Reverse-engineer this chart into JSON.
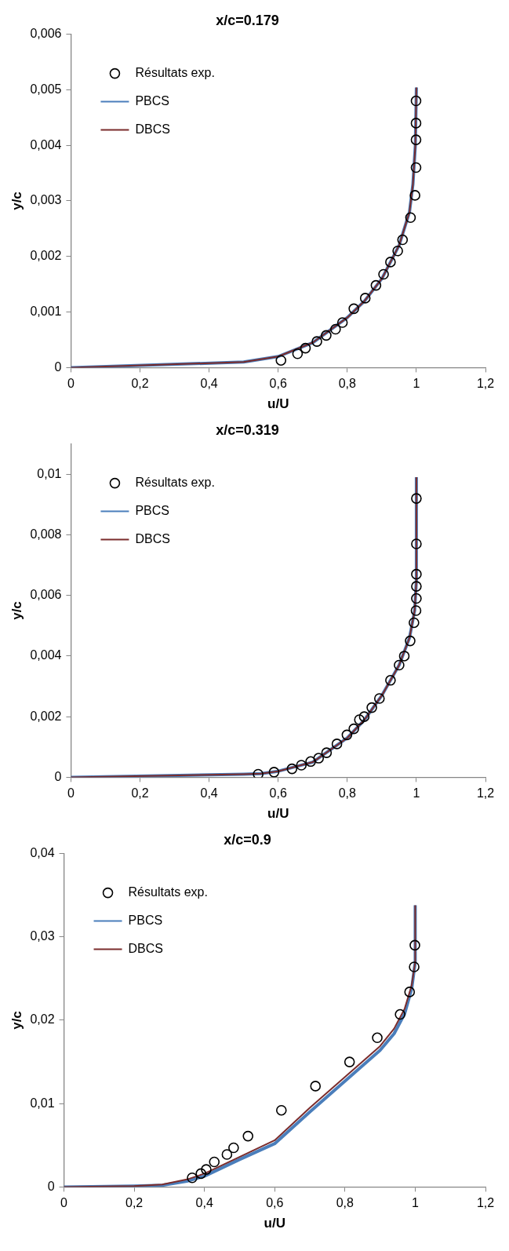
{
  "chart_data": [
    {
      "type": "line",
      "title": "x/c=0.179",
      "xlabel": "u/U",
      "ylabel": "y/c",
      "legend": "top left",
      "grid": false,
      "xlim": [
        0,
        1.2
      ],
      "ylim": [
        0,
        0.006
      ],
      "xticks": [
        {
          "value": 0,
          "label": "0"
        },
        {
          "value": 0.2,
          "label": "0,2"
        },
        {
          "value": 0.4,
          "label": "0,4"
        },
        {
          "value": 0.6,
          "label": "0,6"
        },
        {
          "value": 0.8,
          "label": "0,8"
        },
        {
          "value": 1,
          "label": "1"
        },
        {
          "value": 1.2,
          "label": "1,2"
        }
      ],
      "yticks": [
        {
          "value": 0,
          "label": "0"
        },
        {
          "value": 0.001,
          "label": "0,001"
        },
        {
          "value": 0.002,
          "label": "0,002"
        },
        {
          "value": 0.003,
          "label": "0,003"
        },
        {
          "value": 0.004,
          "label": "0,004"
        },
        {
          "value": 0.005,
          "label": "0,005"
        },
        {
          "value": 0.006,
          "label": "0,006"
        }
      ],
      "series": [
        {
          "name": "Résultats exp.",
          "type": "scatter",
          "marker": "circle",
          "color": "#000000",
          "x": [
            0.608,
            0.656,
            0.679,
            0.712,
            0.739,
            0.766,
            0.786,
            0.819,
            0.852,
            0.883,
            0.905,
            0.925,
            0.946,
            0.96,
            0.983,
            0.996,
            0.999,
            0.999,
            0.999,
            0.999
          ],
          "values": [
            0.00013,
            0.00025,
            0.00035,
            0.00047,
            0.00058,
            0.00069,
            0.00081,
            0.00106,
            0.00125,
            0.00148,
            0.00168,
            0.0019,
            0.0021,
            0.0023,
            0.0027,
            0.0031,
            0.0036,
            0.0041,
            0.0044,
            0.0048
          ]
        },
        {
          "name": "PBCS",
          "type": "line",
          "marker": "none",
          "color": "#4a7ebb",
          "x": [
            0,
            0.5,
            0.6,
            0.7,
            0.8,
            0.85,
            0.9,
            0.95,
            0.98,
            0.99,
            0.997,
            1.0
          ],
          "values": [
            0,
            0.0001,
            0.0002,
            0.00045,
            0.0009,
            0.0012,
            0.0016,
            0.0022,
            0.0028,
            0.0033,
            0.004,
            0.00504
          ]
        },
        {
          "name": "DBCS",
          "type": "line",
          "marker": "none",
          "color": "#7b2c2c",
          "x": [
            0,
            0.5,
            0.6,
            0.7,
            0.8,
            0.85,
            0.9,
            0.95,
            0.98,
            0.99,
            0.997,
            1.0
          ],
          "values": [
            0,
            0.0001,
            0.0002,
            0.00045,
            0.0009,
            0.0012,
            0.0016,
            0.0022,
            0.0028,
            0.0033,
            0.004,
            0.00504
          ]
        }
      ]
    },
    {
      "type": "line",
      "title": "x/c=0.319",
      "xlabel": "u/U",
      "ylabel": "y/c",
      "legend": "top left",
      "grid": false,
      "xlim": [
        0,
        1.2
      ],
      "ylim": [
        0,
        0.011
      ],
      "xticks": [
        {
          "value": 0,
          "label": "0"
        },
        {
          "value": 0.2,
          "label": "0,2"
        },
        {
          "value": 0.4,
          "label": "0,4"
        },
        {
          "value": 0.6,
          "label": "0,6"
        },
        {
          "value": 0.8,
          "label": "0,8"
        },
        {
          "value": 1,
          "label": "1"
        },
        {
          "value": 1.2,
          "label": "1,2"
        }
      ],
      "yticks": [
        {
          "value": 0,
          "label": "0"
        },
        {
          "value": 0.002,
          "label": "0,002"
        },
        {
          "value": 0.004,
          "label": "0,004"
        },
        {
          "value": 0.006,
          "label": "0,006"
        },
        {
          "value": 0.008,
          "label": "0,008"
        },
        {
          "value": 0.01,
          "label": "0,01"
        }
      ],
      "series": [
        {
          "name": "Résultats exp.",
          "type": "scatter",
          "marker": "circle",
          "color": "#000000",
          "x": [
            0.542,
            0.588,
            0.64,
            0.667,
            0.694,
            0.717,
            0.74,
            0.77,
            0.799,
            0.819,
            0.835,
            0.849,
            0.871,
            0.893,
            0.925,
            0.95,
            0.965,
            0.982,
            0.993,
            0.999,
            1.0,
            1.0,
            1.0,
            1.0,
            1.0
          ],
          "values": [
            0.0001,
            0.00017,
            0.00028,
            0.0004,
            0.00052,
            0.00063,
            0.00081,
            0.0011,
            0.0014,
            0.0016,
            0.0019,
            0.002,
            0.0023,
            0.0026,
            0.0032,
            0.0037,
            0.004,
            0.0045,
            0.0051,
            0.0055,
            0.0059,
            0.0063,
            0.0067,
            0.0077,
            0.0092
          ]
        },
        {
          "name": "PBCS",
          "type": "line",
          "marker": "none",
          "color": "#4a7ebb",
          "x": [
            0,
            0.5,
            0.55,
            0.6,
            0.7,
            0.8,
            0.85,
            0.9,
            0.95,
            0.98,
            0.995,
            1.0,
            1.0
          ],
          "values": [
            0,
            0.0001,
            0.00012,
            0.0002,
            0.0005,
            0.0013,
            0.0019,
            0.0027,
            0.0037,
            0.0046,
            0.0055,
            0.0065,
            0.0099
          ]
        },
        {
          "name": "DBCS",
          "type": "line",
          "marker": "none",
          "color": "#7b2c2c",
          "x": [
            0,
            0.5,
            0.55,
            0.6,
            0.7,
            0.8,
            0.85,
            0.9,
            0.95,
            0.98,
            0.995,
            1.0,
            1.0
          ],
          "values": [
            0,
            0.0001,
            0.00012,
            0.0002,
            0.0005,
            0.0013,
            0.0019,
            0.0027,
            0.0037,
            0.0046,
            0.0055,
            0.0065,
            0.0099
          ]
        }
      ]
    },
    {
      "type": "line",
      "title": "x/c=0.9",
      "xlabel": "u/U",
      "ylabel": "y/c",
      "legend": "top left",
      "grid": false,
      "xlim": [
        0,
        1.2
      ],
      "ylim": [
        0,
        0.04
      ],
      "xticks": [
        {
          "value": 0,
          "label": "0"
        },
        {
          "value": 0.2,
          "label": "0,2"
        },
        {
          "value": 0.4,
          "label": "0,4"
        },
        {
          "value": 0.6,
          "label": "0,6"
        },
        {
          "value": 0.8,
          "label": "0,8"
        },
        {
          "value": 1,
          "label": "1"
        },
        {
          "value": 1.2,
          "label": "1,2"
        }
      ],
      "yticks": [
        {
          "value": 0,
          "label": "0"
        },
        {
          "value": 0.01,
          "label": "0,01"
        },
        {
          "value": 0.02,
          "label": "0,02"
        },
        {
          "value": 0.03,
          "label": "0,03"
        },
        {
          "value": 0.04,
          "label": "0,04"
        }
      ],
      "series": [
        {
          "name": "Résultats exp.",
          "type": "scatter",
          "marker": "circle",
          "color": "#000000",
          "x": [
            0.365,
            0.39,
            0.405,
            0.428,
            0.464,
            0.483,
            0.524,
            0.619,
            0.716,
            0.813,
            0.892,
            0.957,
            0.984,
            0.997,
            0.999
          ],
          "values": [
            0.0011,
            0.0016,
            0.0021,
            0.003,
            0.0039,
            0.0047,
            0.0061,
            0.0092,
            0.0121,
            0.015,
            0.0179,
            0.0207,
            0.0234,
            0.0264,
            0.029
          ]
        },
        {
          "name": "PBCS",
          "type": "line",
          "marker": "none",
          "color": "#4a7ebb",
          "x": [
            0,
            0.2,
            0.28,
            0.35,
            0.4,
            0.5,
            0.6,
            0.7,
            0.8,
            0.9,
            0.94,
            0.97,
            0.99,
            1.0,
            1.0
          ],
          "values": [
            0,
            0.0001,
            0.0002,
            0.0007,
            0.0013,
            0.0033,
            0.0052,
            0.009,
            0.0127,
            0.0164,
            0.0184,
            0.0208,
            0.0238,
            0.027,
            0.0338
          ]
        },
        {
          "name": "DBCS",
          "type": "line",
          "marker": "none",
          "color": "#7b2c2c",
          "x": [
            0,
            0.2,
            0.28,
            0.35,
            0.4,
            0.5,
            0.6,
            0.7,
            0.8,
            0.9,
            0.94,
            0.97,
            0.99,
            1.0,
            1.0
          ],
          "values": [
            0,
            0.0001,
            0.0003,
            0.0009,
            0.0016,
            0.0036,
            0.0056,
            0.0095,
            0.0132,
            0.0169,
            0.019,
            0.0214,
            0.0242,
            0.027,
            0.0338
          ]
        }
      ]
    }
  ]
}
